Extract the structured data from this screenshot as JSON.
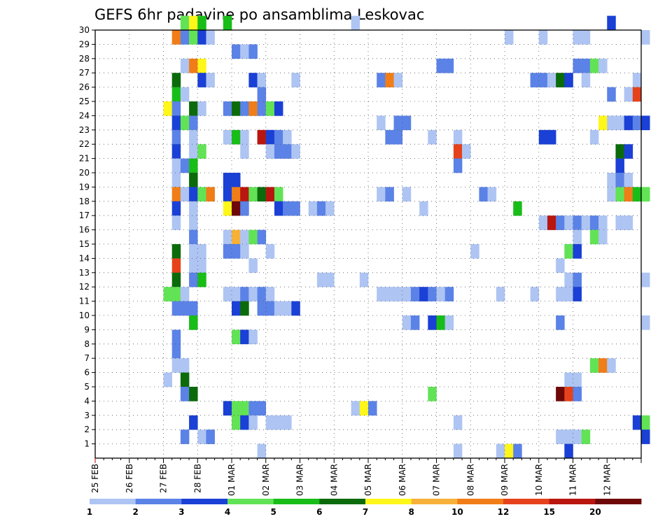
{
  "chart_data": {
    "type": "heatmap",
    "title": "GEFS 6hr padavine po ansamblima Leskovac",
    "xlabel": "",
    "ylabel": "",
    "x_tick_labels": [
      "25 FEB",
      "26 FEB",
      "27 FEB",
      "28 FEB",
      "01 MAR",
      "02 MAR",
      "03 MAR",
      "04 MAR",
      "05 MAR",
      "06 MAR",
      "07 MAR",
      "08 MAR",
      "09 MAR",
      "10 MAR",
      "11 MAR",
      "12 MAR"
    ],
    "x_unit": "6-hour steps from 25 FEB 00Z",
    "y_tick_labels": [
      "1",
      "2",
      "3",
      "4",
      "5",
      "6",
      "7",
      "8",
      "9",
      "10",
      "11",
      "12",
      "13",
      "14",
      "15",
      "16",
      "17",
      "18",
      "19",
      "20",
      "21",
      "22",
      "23",
      "24",
      "25",
      "26",
      "27",
      "28",
      "29",
      "30"
    ],
    "y_range": [
      0,
      30
    ],
    "x_range": [
      0,
      64
    ],
    "grid": true,
    "colorbar": {
      "labels": [
        "1",
        "2",
        "3",
        "4",
        "5",
        "6",
        "7",
        "8",
        "10",
        "12",
        "15",
        "20"
      ],
      "colors": [
        "#aec5f3",
        "#5b82e6",
        "#1a40d6",
        "#62e356",
        "#18bd18",
        "#0b6b0b",
        "#fff61a",
        "#f7b13a",
        "#f07d17",
        "#e5421c",
        "#b8160f",
        "#6e0808"
      ]
    },
    "cells": [
      [
        10,
        30,
        4
      ],
      [
        11,
        30,
        7
      ],
      [
        12,
        30,
        5
      ],
      [
        15,
        30,
        5
      ],
      [
        30,
        30,
        1
      ],
      [
        60,
        30,
        3
      ],
      [
        9,
        29,
        9
      ],
      [
        10,
        29,
        2
      ],
      [
        11,
        29,
        4
      ],
      [
        12,
        29,
        3
      ],
      [
        13,
        29,
        1
      ],
      [
        48,
        29,
        1
      ],
      [
        52,
        29,
        1
      ],
      [
        56,
        29,
        1
      ],
      [
        57,
        29,
        1
      ],
      [
        64,
        29,
        1
      ],
      [
        16,
        28,
        2
      ],
      [
        17,
        28,
        1
      ],
      [
        18,
        28,
        2
      ],
      [
        10,
        27,
        1
      ],
      [
        11,
        27,
        9
      ],
      [
        12,
        27,
        7
      ],
      [
        40,
        27,
        2
      ],
      [
        41,
        27,
        2
      ],
      [
        56,
        27,
        2
      ],
      [
        57,
        27,
        2
      ],
      [
        58,
        27,
        4
      ],
      [
        59,
        27,
        1
      ],
      [
        9,
        26,
        6
      ],
      [
        12,
        26,
        3
      ],
      [
        13,
        26,
        1
      ],
      [
        18,
        26,
        3
      ],
      [
        19,
        26,
        1
      ],
      [
        23,
        26,
        1
      ],
      [
        33,
        26,
        2
      ],
      [
        34,
        26,
        9
      ],
      [
        35,
        26,
        1
      ],
      [
        51,
        26,
        2
      ],
      [
        52,
        26,
        2
      ],
      [
        53,
        26,
        1
      ],
      [
        54,
        26,
        6
      ],
      [
        55,
        26,
        3
      ],
      [
        57,
        26,
        1
      ],
      [
        63,
        26,
        1
      ],
      [
        9,
        25,
        5
      ],
      [
        10,
        25,
        1
      ],
      [
        19,
        25,
        2
      ],
      [
        60,
        25,
        2
      ],
      [
        62,
        25,
        1
      ],
      [
        63,
        25,
        10
      ],
      [
        8,
        24,
        7
      ],
      [
        9,
        24,
        2
      ],
      [
        11,
        24,
        6
      ],
      [
        12,
        24,
        1
      ],
      [
        15,
        24,
        2
      ],
      [
        16,
        24,
        6
      ],
      [
        17,
        24,
        2
      ],
      [
        18,
        24,
        9
      ],
      [
        19,
        24,
        2
      ],
      [
        20,
        24,
        4
      ],
      [
        21,
        24,
        3
      ],
      [
        9,
        23,
        3
      ],
      [
        10,
        23,
        4
      ],
      [
        11,
        23,
        2
      ],
      [
        33,
        23,
        1
      ],
      [
        35,
        23,
        2
      ],
      [
        36,
        23,
        2
      ],
      [
        59,
        23,
        7
      ],
      [
        60,
        23,
        1
      ],
      [
        61,
        23,
        1
      ],
      [
        62,
        23,
        3
      ],
      [
        63,
        23,
        2
      ],
      [
        64,
        23,
        3
      ],
      [
        9,
        22,
        2
      ],
      [
        11,
        22,
        1
      ],
      [
        15,
        22,
        1
      ],
      [
        16,
        22,
        5
      ],
      [
        17,
        22,
        1
      ],
      [
        19,
        22,
        11
      ],
      [
        20,
        22,
        3
      ],
      [
        21,
        22,
        2
      ],
      [
        22,
        22,
        1
      ],
      [
        34,
        22,
        2
      ],
      [
        35,
        22,
        2
      ],
      [
        39,
        22,
        1
      ],
      [
        42,
        22,
        1
      ],
      [
        52,
        22,
        3
      ],
      [
        53,
        22,
        3
      ],
      [
        58,
        22,
        1
      ],
      [
        9,
        21,
        3
      ],
      [
        11,
        21,
        1
      ],
      [
        12,
        21,
        4
      ],
      [
        17,
        21,
        1
      ],
      [
        20,
        21,
        1
      ],
      [
        21,
        21,
        2
      ],
      [
        22,
        21,
        2
      ],
      [
        23,
        21,
        1
      ],
      [
        42,
        21,
        10
      ],
      [
        43,
        21,
        1
      ],
      [
        61,
        21,
        6
      ],
      [
        62,
        21,
        3
      ],
      [
        9,
        20,
        1
      ],
      [
        10,
        20,
        2
      ],
      [
        11,
        20,
        5
      ],
      [
        42,
        20,
        2
      ],
      [
        61,
        20,
        3
      ],
      [
        9,
        19,
        1
      ],
      [
        11,
        19,
        6
      ],
      [
        15,
        19,
        3
      ],
      [
        16,
        19,
        3
      ],
      [
        60,
        19,
        1
      ],
      [
        61,
        19,
        2
      ],
      [
        62,
        19,
        1
      ],
      [
        9,
        18,
        9
      ],
      [
        10,
        18,
        1
      ],
      [
        11,
        18,
        3
      ],
      [
        12,
        18,
        4
      ],
      [
        13,
        18,
        9
      ],
      [
        15,
        18,
        3
      ],
      [
        16,
        18,
        9
      ],
      [
        17,
        18,
        11
      ],
      [
        18,
        18,
        4
      ],
      [
        19,
        18,
        6
      ],
      [
        20,
        18,
        11
      ],
      [
        21,
        18,
        4
      ],
      [
        33,
        18,
        1
      ],
      [
        34,
        18,
        2
      ],
      [
        36,
        18,
        1
      ],
      [
        45,
        18,
        2
      ],
      [
        46,
        18,
        1
      ],
      [
        60,
        18,
        1
      ],
      [
        61,
        18,
        4
      ],
      [
        62,
        18,
        9
      ],
      [
        63,
        18,
        5
      ],
      [
        64,
        18,
        4
      ],
      [
        9,
        17,
        3
      ],
      [
        11,
        17,
        1
      ],
      [
        15,
        17,
        7
      ],
      [
        16,
        17,
        12
      ],
      [
        17,
        17,
        2
      ],
      [
        21,
        17,
        3
      ],
      [
        22,
        17,
        2
      ],
      [
        23,
        17,
        2
      ],
      [
        25,
        17,
        1
      ],
      [
        26,
        17,
        2
      ],
      [
        27,
        17,
        1
      ],
      [
        38,
        17,
        1
      ],
      [
        49,
        17,
        5
      ],
      [
        9,
        16,
        1
      ],
      [
        11,
        16,
        1
      ],
      [
        52,
        16,
        1
      ],
      [
        53,
        16,
        11
      ],
      [
        54,
        16,
        2
      ],
      [
        55,
        16,
        1
      ],
      [
        56,
        16,
        2
      ],
      [
        57,
        16,
        1
      ],
      [
        58,
        16,
        2
      ],
      [
        59,
        16,
        1
      ],
      [
        61,
        16,
        1
      ],
      [
        62,
        16,
        1
      ],
      [
        11,
        15,
        2
      ],
      [
        15,
        15,
        1
      ],
      [
        16,
        15,
        8
      ],
      [
        17,
        15,
        1
      ],
      [
        18,
        15,
        4
      ],
      [
        19,
        15,
        2
      ],
      [
        56,
        15,
        1
      ],
      [
        58,
        15,
        4
      ],
      [
        59,
        15,
        1
      ],
      [
        9,
        14,
        6
      ],
      [
        11,
        14,
        1
      ],
      [
        12,
        14,
        1
      ],
      [
        15,
        14,
        2
      ],
      [
        16,
        14,
        2
      ],
      [
        17,
        14,
        1
      ],
      [
        20,
        14,
        1
      ],
      [
        44,
        14,
        1
      ],
      [
        55,
        14,
        4
      ],
      [
        56,
        14,
        3
      ],
      [
        9,
        13,
        10
      ],
      [
        11,
        13,
        1
      ],
      [
        12,
        13,
        1
      ],
      [
        18,
        13,
        1
      ],
      [
        54,
        13,
        1
      ],
      [
        9,
        12,
        6
      ],
      [
        11,
        12,
        2
      ],
      [
        12,
        12,
        5
      ],
      [
        26,
        12,
        1
      ],
      [
        27,
        12,
        1
      ],
      [
        31,
        12,
        1
      ],
      [
        55,
        12,
        1
      ],
      [
        56,
        12,
        2
      ],
      [
        64,
        12,
        1
      ],
      [
        8,
        11,
        4
      ],
      [
        9,
        11,
        4
      ],
      [
        10,
        11,
        1
      ],
      [
        15,
        11,
        1
      ],
      [
        16,
        11,
        1
      ],
      [
        17,
        11,
        2
      ],
      [
        18,
        11,
        1
      ],
      [
        19,
        11,
        2
      ],
      [
        20,
        11,
        1
      ],
      [
        33,
        11,
        1
      ],
      [
        34,
        11,
        1
      ],
      [
        35,
        11,
        1
      ],
      [
        36,
        11,
        1
      ],
      [
        37,
        11,
        2
      ],
      [
        38,
        11,
        3
      ],
      [
        39,
        11,
        2
      ],
      [
        40,
        11,
        1
      ],
      [
        41,
        11,
        2
      ],
      [
        47,
        11,
        1
      ],
      [
        51,
        11,
        1
      ],
      [
        54,
        11,
        1
      ],
      [
        55,
        11,
        1
      ],
      [
        56,
        11,
        3
      ],
      [
        9,
        10,
        2
      ],
      [
        10,
        10,
        2
      ],
      [
        11,
        10,
        2
      ],
      [
        16,
        10,
        3
      ],
      [
        17,
        10,
        6
      ],
      [
        19,
        10,
        2
      ],
      [
        20,
        10,
        2
      ],
      [
        21,
        10,
        1
      ],
      [
        22,
        10,
        1
      ],
      [
        23,
        10,
        3
      ],
      [
        11,
        9,
        5
      ],
      [
        36,
        9,
        1
      ],
      [
        37,
        9,
        2
      ],
      [
        39,
        9,
        3
      ],
      [
        40,
        9,
        5
      ],
      [
        41,
        9,
        1
      ],
      [
        54,
        9,
        2
      ],
      [
        64,
        9,
        1
      ],
      [
        9,
        8,
        2
      ],
      [
        16,
        8,
        4
      ],
      [
        17,
        8,
        3
      ],
      [
        18,
        8,
        1
      ],
      [
        9,
        7,
        2
      ],
      [
        9,
        6,
        1
      ],
      [
        10,
        6,
        1
      ],
      [
        58,
        6,
        4
      ],
      [
        59,
        6,
        9
      ],
      [
        60,
        6,
        1
      ],
      [
        8,
        5,
        1
      ],
      [
        10,
        5,
        6
      ],
      [
        55,
        5,
        1
      ],
      [
        56,
        5,
        1
      ],
      [
        10,
        4,
        2
      ],
      [
        11,
        4,
        6
      ],
      [
        39,
        4,
        4
      ],
      [
        54,
        4,
        12
      ],
      [
        55,
        4,
        10
      ],
      [
        56,
        4,
        2
      ],
      [
        15,
        3,
        3
      ],
      [
        16,
        3,
        4
      ],
      [
        17,
        3,
        4
      ],
      [
        18,
        3,
        2
      ],
      [
        19,
        3,
        2
      ],
      [
        30,
        3,
        1
      ],
      [
        31,
        3,
        7
      ],
      [
        32,
        3,
        2
      ],
      [
        11,
        2,
        3
      ],
      [
        16,
        2,
        4
      ],
      [
        17,
        2,
        3
      ],
      [
        18,
        2,
        1
      ],
      [
        20,
        2,
        1
      ],
      [
        21,
        2,
        1
      ],
      [
        22,
        2,
        1
      ],
      [
        42,
        2,
        1
      ],
      [
        63,
        2,
        3
      ],
      [
        64,
        2,
        4
      ],
      [
        10,
        1,
        2
      ],
      [
        12,
        1,
        1
      ],
      [
        13,
        1,
        2
      ],
      [
        54,
        1,
        1
      ],
      [
        55,
        1,
        1
      ],
      [
        56,
        1,
        1
      ],
      [
        57,
        1,
        4
      ],
      [
        64,
        1,
        3
      ],
      [
        19,
        0,
        1
      ],
      [
        42,
        0,
        1
      ],
      [
        47,
        0,
        1
      ],
      [
        48,
        0,
        7
      ],
      [
        49,
        0,
        2
      ],
      [
        55,
        0,
        3
      ]
    ]
  }
}
